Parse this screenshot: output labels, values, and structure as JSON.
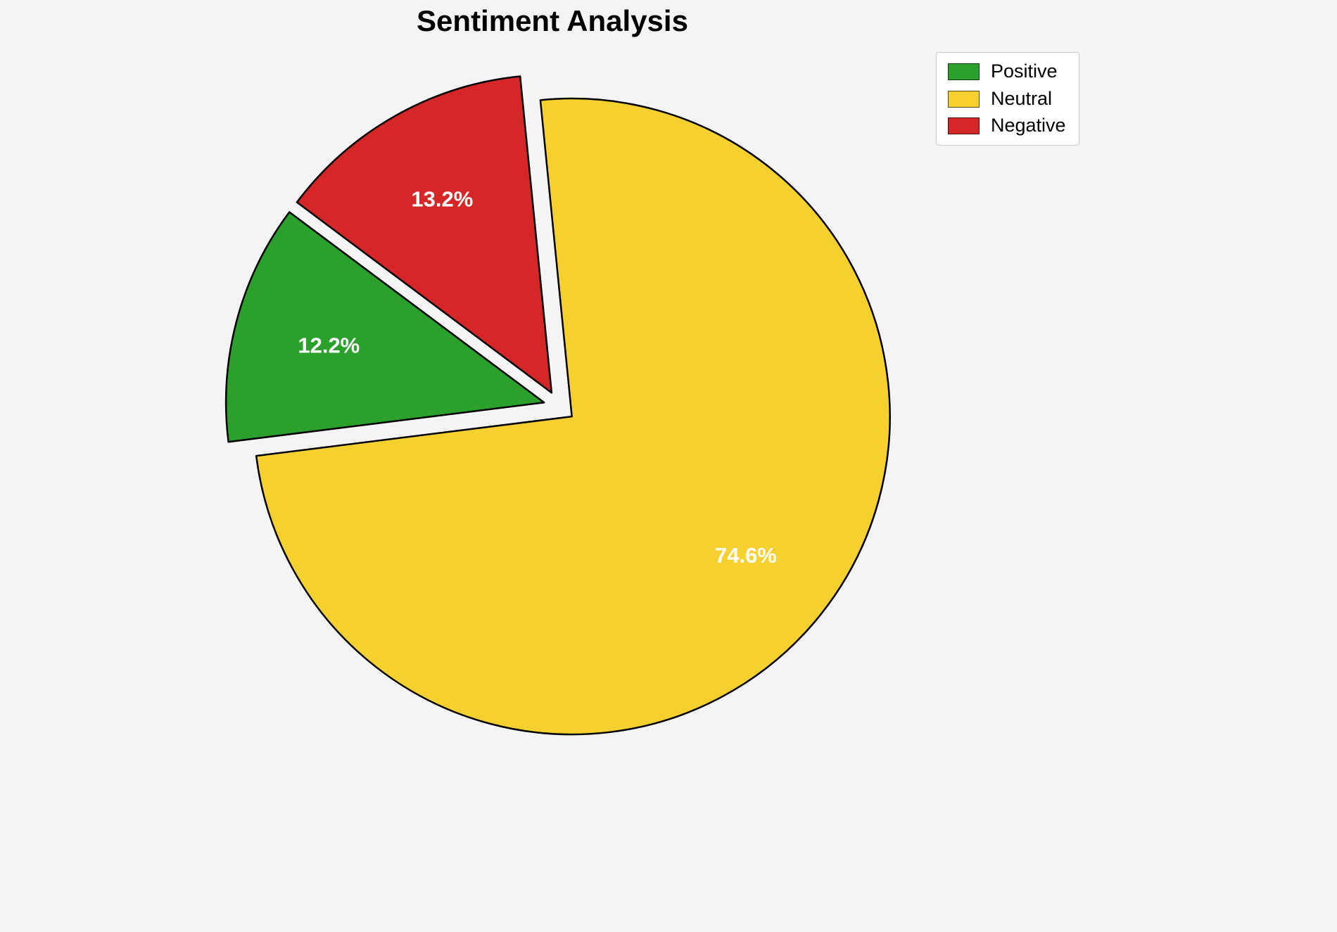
{
  "chart_data": {
    "type": "pie",
    "title": "Sentiment Analysis",
    "labels": [
      "Positive",
      "Neutral",
      "Negative"
    ],
    "values": [
      12.2,
      74.6,
      13.2
    ],
    "autopct_labels": [
      "12.2%",
      "74.6%",
      "13.2%"
    ],
    "colors": [
      "#2ca02c",
      "#f5d02e",
      "#d62728"
    ],
    "explode": [
      0.05,
      0.05,
      0.05
    ],
    "start_angle": 143.2,
    "counterclockwise": true,
    "edge_color": "#000000",
    "edge_width": 2.5,
    "pct_label_color": "#ffffff",
    "pct_distance": 0.7,
    "legend": {
      "position": "upper right",
      "entries": [
        "Positive",
        "Neutral",
        "Negative"
      ]
    },
    "background_color": "#f4f4f4"
  }
}
